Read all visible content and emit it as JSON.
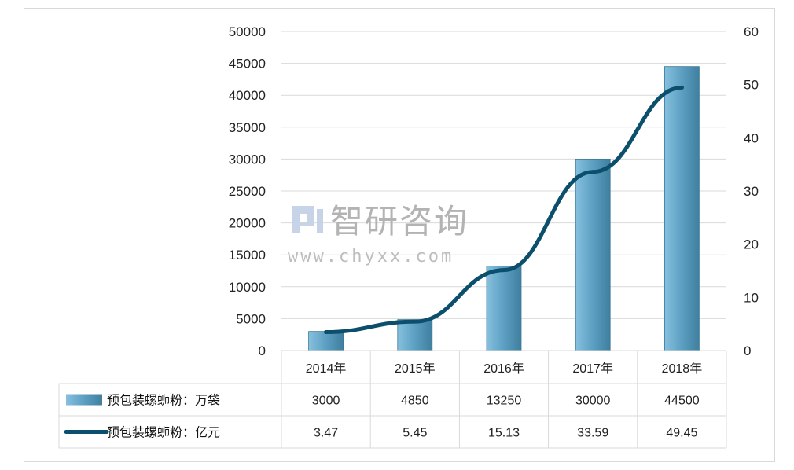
{
  "chart_data": {
    "type": "bar",
    "categories": [
      "2014年",
      "2015年",
      "2016年",
      "2017年",
      "2018年"
    ],
    "series": [
      {
        "name": "预包装螺蛳粉：万袋",
        "type": "bar",
        "axis": "left",
        "values": [
          3000,
          4850,
          13250,
          30000,
          44500
        ]
      },
      {
        "name": "预包装螺蛳粉：亿元",
        "type": "line",
        "axis": "right",
        "values": [
          3.47,
          5.45,
          15.13,
          33.59,
          49.45
        ]
      }
    ],
    "y_left": {
      "range": [
        0,
        50000
      ],
      "ticks": [
        "0",
        "5000",
        "10000",
        "15000",
        "20000",
        "25000",
        "30000",
        "35000",
        "40000",
        "45000",
        "50000"
      ]
    },
    "y_right": {
      "range": [
        0,
        60
      ],
      "ticks": [
        "0",
        "10",
        "20",
        "30",
        "40",
        "50",
        "60"
      ]
    },
    "data_table": {
      "rows": [
        {
          "label": "预包装螺蛳粉：万袋",
          "cells": [
            "3000",
            "4850",
            "13250",
            "30000",
            "44500"
          ]
        },
        {
          "label": "预包装螺蛳粉：亿元",
          "cells": [
            "3.47",
            "5.45",
            "15.13",
            "33.59",
            "49.45"
          ]
        }
      ]
    },
    "grid": true,
    "colors": {
      "bar": "#5a9dbf",
      "line": "#0b4f6c",
      "grid": "#d9d9d9"
    }
  },
  "watermark": {
    "name": "智研咨询",
    "url": "www.chyxx.com"
  }
}
